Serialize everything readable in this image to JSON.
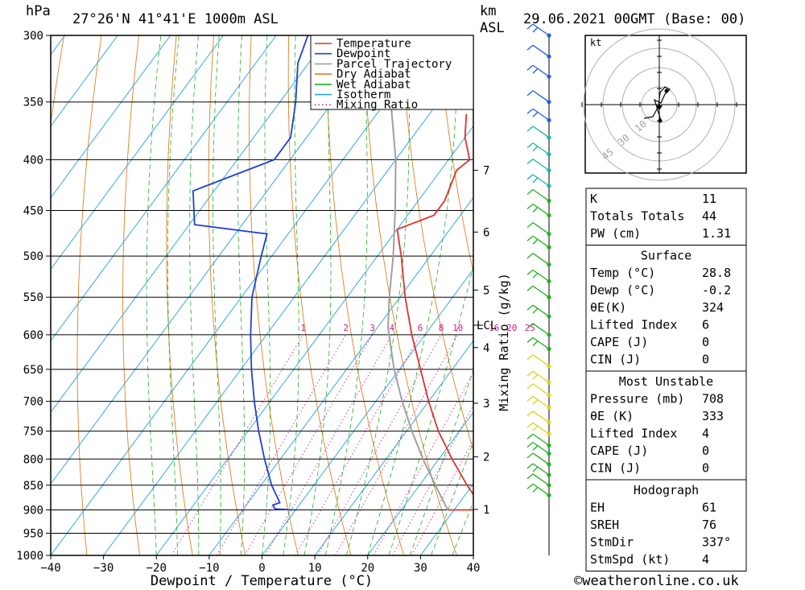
{
  "header": {
    "unit_left": "hPa",
    "location": "27°26'N  41°41'E  1000m  ASL",
    "unit_km": "km",
    "unit_asl": "ASL",
    "datetime": "29.06.2021  00GMT  (Base: 00)"
  },
  "axes": {
    "xlabel": "Dewpoint / Temperature (°C)",
    "mixing_ratio_label": "Mixing Ratio (g/kg)",
    "lcl_label": "LCL"
  },
  "legend": {
    "items": [
      {
        "label": "Temperature",
        "color": "#e03030",
        "style": "solid"
      },
      {
        "label": "Dewpoint",
        "color": "#2040d0",
        "style": "solid"
      },
      {
        "label": "Parcel Trajectory",
        "color": "#a0a0a0",
        "style": "solid"
      },
      {
        "label": "Dry Adiabat",
        "color": "#e08020",
        "style": "solid"
      },
      {
        "label": "Wet Adiabat",
        "color": "#20b020",
        "style": "solid"
      },
      {
        "label": "Isotherm",
        "color": "#20a0e0",
        "style": "solid"
      },
      {
        "label": "Mixing Ratio",
        "color": "#d0208a",
        "style": "dotted"
      }
    ]
  },
  "hodograph": {
    "unit": "kt",
    "ring_labels": [
      "10",
      "30",
      "45"
    ]
  },
  "indices": {
    "rows": [
      {
        "label": "K",
        "value": "11"
      },
      {
        "label": "Totals Totals",
        "value": "44"
      },
      {
        "label": "PW (cm)",
        "value": "1.31"
      }
    ]
  },
  "surface": {
    "title": "Surface",
    "rows": [
      {
        "label": "Temp (°C)",
        "value": "28.8"
      },
      {
        "label": "Dewp (°C)",
        "value": "-0.2"
      },
      {
        "label": "θE(K)",
        "value": "324"
      },
      {
        "label": "Lifted Index",
        "value": "6"
      },
      {
        "label": "CAPE (J)",
        "value": "0"
      },
      {
        "label": "CIN (J)",
        "value": "0"
      }
    ]
  },
  "most_unstable": {
    "title": "Most Unstable",
    "rows": [
      {
        "label": "Pressure (mb)",
        "value": "708"
      },
      {
        "label": "θE (K)",
        "value": "333"
      },
      {
        "label": "Lifted Index",
        "value": "4"
      },
      {
        "label": "CAPE (J)",
        "value": "0"
      },
      {
        "label": "CIN (J)",
        "value": "0"
      }
    ]
  },
  "hodograph_box": {
    "title": "Hodograph",
    "rows": [
      {
        "label": "EH",
        "value": "61"
      },
      {
        "label": "SREH",
        "value": "76"
      },
      {
        "label": "StmDir",
        "value": "337°"
      },
      {
        "label": "StmSpd (kt)",
        "value": "4"
      }
    ]
  },
  "footer": {
    "copyright": "©weatheronline.co.uk"
  },
  "chart_data": {
    "type": "line",
    "title": "",
    "xlabel": "Dewpoint / Temperature (°C)",
    "ylabel": "hPa",
    "xlim": [
      -40,
      40
    ],
    "ylim": [
      1000,
      300
    ],
    "pressure_ticks": [
      1000,
      950,
      900,
      850,
      800,
      750,
      700,
      650,
      600,
      550,
      500,
      450,
      400,
      350,
      300
    ],
    "temp_ticks": [
      -40,
      -30,
      -20,
      -10,
      0,
      10,
      20,
      30,
      40
    ],
    "height_ticks_km": [
      {
        "label": "1",
        "p": 899
      },
      {
        "label": "2",
        "p": 796
      },
      {
        "label": "3",
        "p": 703
      },
      {
        "label": "4",
        "p": 618
      },
      {
        "label": "5",
        "p": 541
      },
      {
        "label": "6",
        "p": 473
      },
      {
        "label": "7",
        "p": 410
      }
    ],
    "mixing_ratio_values": [
      "1",
      "2",
      "3",
      "4",
      "6",
      "8",
      "10",
      "16",
      "20",
      "25"
    ],
    "series": [
      {
        "name": "Temperature",
        "color": "#e03030",
        "points": [
          {
            "p": 900,
            "t": 28.8
          },
          {
            "p": 900,
            "t": 37
          },
          {
            "p": 880,
            "t": 33
          },
          {
            "p": 850,
            "t": 29
          },
          {
            "p": 800,
            "t": 22.5
          },
          {
            "p": 750,
            "t": 16
          },
          {
            "p": 700,
            "t": 10
          },
          {
            "p": 650,
            "t": 4
          },
          {
            "p": 600,
            "t": -2.5
          },
          {
            "p": 550,
            "t": -9
          },
          {
            "p": 500,
            "t": -15.5
          },
          {
            "p": 470,
            "t": -20
          },
          {
            "p": 455,
            "t": -15
          },
          {
            "p": 440,
            "t": -15
          },
          {
            "p": 410,
            "t": -17
          },
          {
            "p": 400,
            "t": -16
          },
          {
            "p": 380,
            "t": -20
          },
          {
            "p": 360,
            "t": -23
          }
        ]
      },
      {
        "name": "Dewpoint",
        "color": "#2040d0",
        "points": [
          {
            "p": 900,
            "t": -0.2
          },
          {
            "p": 898,
            "t": -4
          },
          {
            "p": 890,
            "t": -5
          },
          {
            "p": 885,
            "t": -4
          },
          {
            "p": 850,
            "t": -8
          },
          {
            "p": 800,
            "t": -13
          },
          {
            "p": 750,
            "t": -18
          },
          {
            "p": 700,
            "t": -23
          },
          {
            "p": 650,
            "t": -28
          },
          {
            "p": 600,
            "t": -33
          },
          {
            "p": 550,
            "t": -38
          },
          {
            "p": 500,
            "t": -42
          },
          {
            "p": 475,
            "t": -44
          },
          {
            "p": 465,
            "t": -59
          },
          {
            "p": 430,
            "t": -64
          },
          {
            "p": 400,
            "t": -53
          },
          {
            "p": 380,
            "t": -53
          },
          {
            "p": 350,
            "t": -57
          },
          {
            "p": 320,
            "t": -62
          },
          {
            "p": 300,
            "t": -64
          }
        ]
      },
      {
        "name": "Parcel Trajectory",
        "color": "#a0a0a0",
        "points": [
          {
            "p": 900,
            "t": 28.8
          },
          {
            "p": 850,
            "t": 23
          },
          {
            "p": 800,
            "t": 17
          },
          {
            "p": 750,
            "t": 11
          },
          {
            "p": 700,
            "t": 5
          },
          {
            "p": 650,
            "t": -1
          },
          {
            "p": 590,
            "t": -8
          },
          {
            "p": 550,
            "t": -12
          },
          {
            "p": 500,
            "t": -17
          },
          {
            "p": 450,
            "t": -23
          },
          {
            "p": 400,
            "t": -30
          },
          {
            "p": 350,
            "t": -39
          },
          {
            "p": 300,
            "t": -50
          }
        ]
      }
    ],
    "wind_barbs_p": [
      300,
      315,
      330,
      350,
      365,
      380,
      395,
      410,
      425,
      440,
      455,
      475,
      490,
      510,
      530,
      550,
      575,
      600,
      620,
      645,
      670,
      690,
      710,
      735,
      755,
      775,
      790,
      810,
      830,
      850,
      870
    ]
  }
}
